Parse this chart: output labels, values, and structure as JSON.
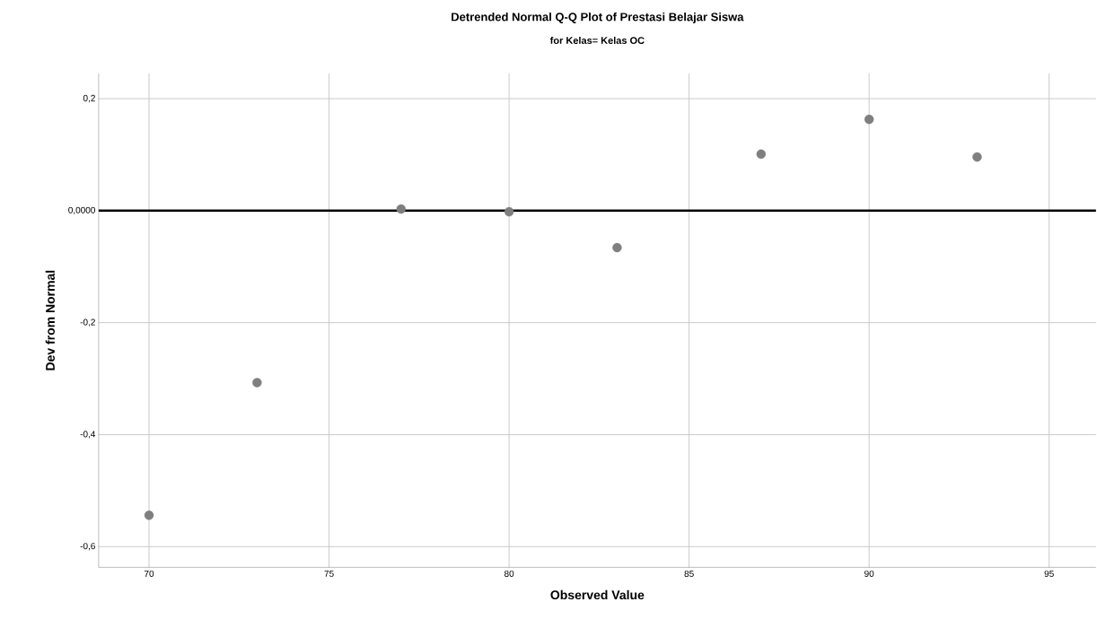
{
  "chart_data": {
    "type": "scatter",
    "title": "Detrended Normal Q-Q Plot of Prestasi Belajar Siswa",
    "subtitle": "for Kelas= Kelas OC",
    "xlabel": "Observed Value",
    "ylabel": "Dev from Normal",
    "x": [
      70,
      73,
      77,
      80,
      83,
      87,
      90,
      93
    ],
    "series": [
      {
        "color": "#7f7f7f",
        "values": [
          -0.544,
          -0.307,
          0.003,
          -0.002,
          -0.066,
          0.101,
          0.163,
          0.096
        ]
      }
    ],
    "xlim": [
      68.6,
      96.3
    ],
    "ylim": [
      -0.637,
      0.245
    ],
    "xticks": [
      70,
      75,
      80,
      85,
      90,
      95
    ],
    "yticks": [
      {
        "value": -0.6,
        "label": "-0,6"
      },
      {
        "value": -0.4,
        "label": "-0,4"
      },
      {
        "value": -0.2,
        "label": "-0,2"
      },
      {
        "value": 0,
        "label": "0,0000"
      },
      {
        "value": 0.2,
        "label": "0,2"
      }
    ],
    "ref_lines": [
      {
        "axis": "y",
        "value": 0,
        "color": "#000000"
      }
    ],
    "grid": true
  }
}
